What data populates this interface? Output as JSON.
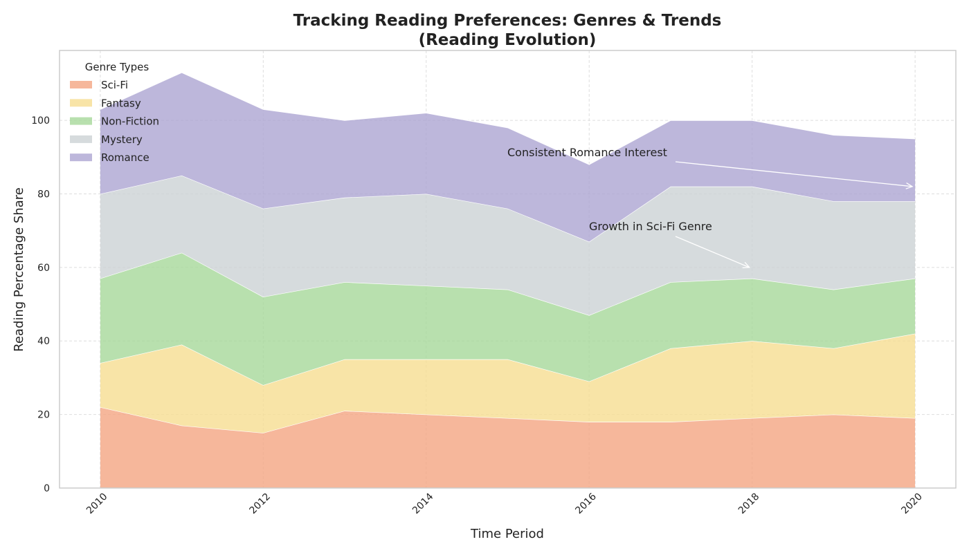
{
  "chart_data": {
    "type": "area",
    "stacked": true,
    "title": "Tracking Reading Preferences: Genres & Trends",
    "subtitle": "(Reading Evolution)",
    "xlabel": "Time Period",
    "ylabel": "Reading Percentage Share",
    "x": [
      2010,
      2011,
      2012,
      2013,
      2014,
      2015,
      2016,
      2017,
      2018,
      2019,
      2020
    ],
    "xticks": [
      "2010",
      "2012",
      "2014",
      "2016",
      "2018",
      "2020"
    ],
    "yticks": [
      "0",
      "20",
      "40",
      "60",
      "80",
      "100"
    ],
    "xlim": [
      2009.5,
      2020.5
    ],
    "ylim": [
      0,
      119
    ],
    "grid": true,
    "legend": {
      "title": "Genre Types",
      "placement": "top-left"
    },
    "series": [
      {
        "name": "Sci-Fi",
        "color": "#f4a582",
        "values": [
          22,
          17,
          15,
          21,
          20,
          19,
          18,
          18,
          19,
          20,
          19
        ]
      },
      {
        "name": "Fantasy",
        "color": "#f6dd91",
        "values": [
          12,
          22,
          13,
          14,
          15,
          16,
          11,
          20,
          21,
          18,
          23
        ]
      },
      {
        "name": "Non-Fiction",
        "color": "#a6d89a",
        "values": [
          23,
          25,
          24,
          21,
          20,
          19,
          18,
          18,
          17,
          16,
          15
        ]
      },
      {
        "name": "Mystery",
        "color": "#ccd2d4",
        "values": [
          23,
          21,
          24,
          23,
          25,
          22,
          20,
          26,
          25,
          24,
          21
        ]
      },
      {
        "name": "Romance",
        "color": "#ada5d2",
        "values": [
          23,
          28,
          27,
          21,
          22,
          22,
          21,
          18,
          18,
          18,
          17
        ]
      }
    ],
    "annotations": [
      {
        "text": "Consistent Romance Interest",
        "x": 2020,
        "y": 82
      },
      {
        "text": "Growth in Sci-Fi Genre",
        "x": 2018,
        "y": 60
      }
    ]
  }
}
